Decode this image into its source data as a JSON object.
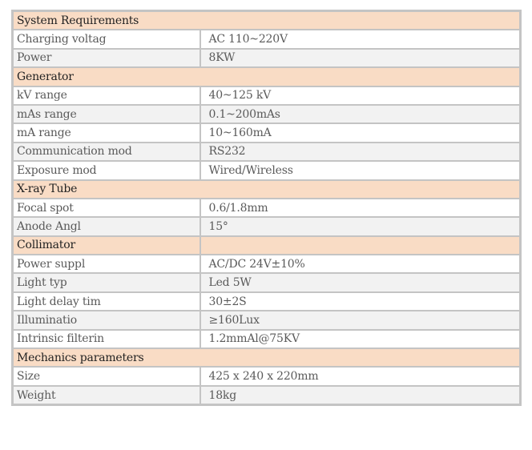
{
  "sections": [
    {
      "title": "System Requirements",
      "rows": [
        {
          "label": "Charging voltag",
          "value": "AC 110~220V"
        },
        {
          "label": "Power",
          "value": "8KW"
        }
      ]
    },
    {
      "title": "Generator",
      "rows": [
        {
          "label": "kV range",
          "value": "40~125 kV"
        },
        {
          "label": "mAs range",
          "value": "0.1~200mAs"
        },
        {
          "label": "mA range",
          "value": "10~160mA"
        },
        {
          "label": "Communication mod",
          "value": "RS232"
        },
        {
          "label": "Exposure mod",
          "value": "Wired/Wireless"
        }
      ]
    },
    {
      "title": "X-ray Tube",
      "rows": [
        {
          "label": "Focal spot",
          "value": "0.6/1.8mm"
        },
        {
          "label": "Anode Angl",
          "value": "15°"
        }
      ]
    },
    {
      "title": "Collimator",
      "split": true,
      "rows": [
        {
          "label": "Power suppl",
          "value": "AC/DC 24V±10%"
        },
        {
          "label": "Light typ",
          "value": "Led 5W"
        },
        {
          "label": "Light delay tim",
          "value": "30±2S"
        },
        {
          "label": "Illuminatio",
          "value": "≥160Lux"
        },
        {
          "label": "Intrinsic filterin",
          "value": "1.2mmAl@75KV"
        }
      ]
    },
    {
      "title": "Mechanics parameters",
      "rows": [
        {
          "label": "Size",
          "value": "425 x 240 x 220mm"
        },
        {
          "label": "Weight",
          "value": "18kg"
        }
      ]
    }
  ],
  "colors": {
    "section_header": "#f9dcc5",
    "row_alt": "#f2f2f2",
    "border": "#c4c4c4"
  }
}
